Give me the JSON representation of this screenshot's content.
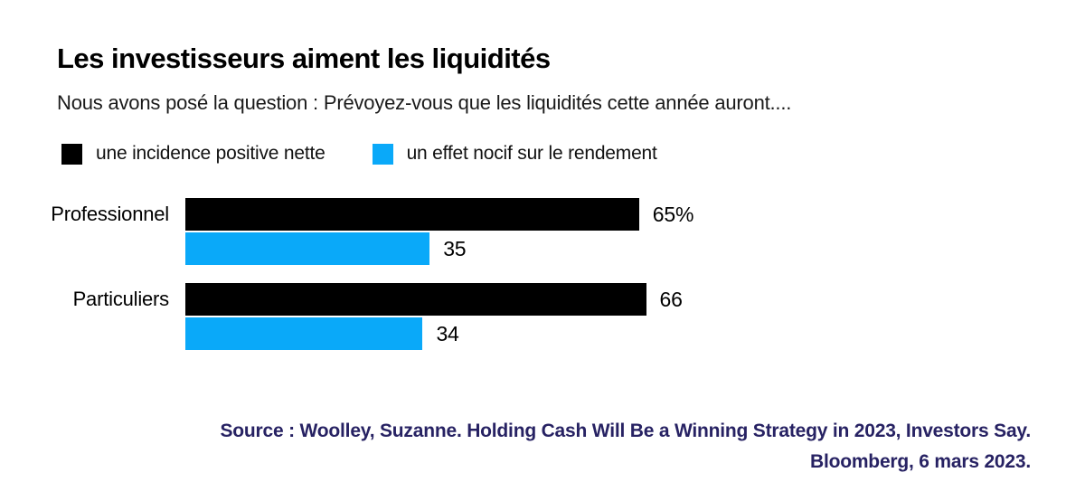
{
  "chart_data": {
    "type": "bar",
    "orientation": "horizontal",
    "title": "Les investisseurs aiment les liquidités",
    "subtitle": "Nous avons posé la question : Prévoyez-vous que les liquidités cette année auront....",
    "categories": [
      "Professionnel",
      "Particuliers"
    ],
    "series": [
      {
        "name": "une incidence positive nette",
        "color": "#000000",
        "values": [
          65,
          66
        ],
        "value_labels": [
          "65%",
          "66"
        ]
      },
      {
        "name": "un effet nocif sur le rendement",
        "color": "#0aa9f9",
        "values": [
          35,
          34
        ],
        "value_labels": [
          "35",
          "34"
        ]
      }
    ],
    "xlim": [
      0,
      100
    ],
    "grid": false,
    "legend_position": "top",
    "value_labels_position": "outside-end"
  },
  "source": {
    "line1": "Source : Woolley, Suzanne. Holding Cash Will Be a Winning Strategy in 2023, Investors Say.",
    "line2": "Bloomberg, 6 mars 2023.",
    "color": "#272263"
  }
}
